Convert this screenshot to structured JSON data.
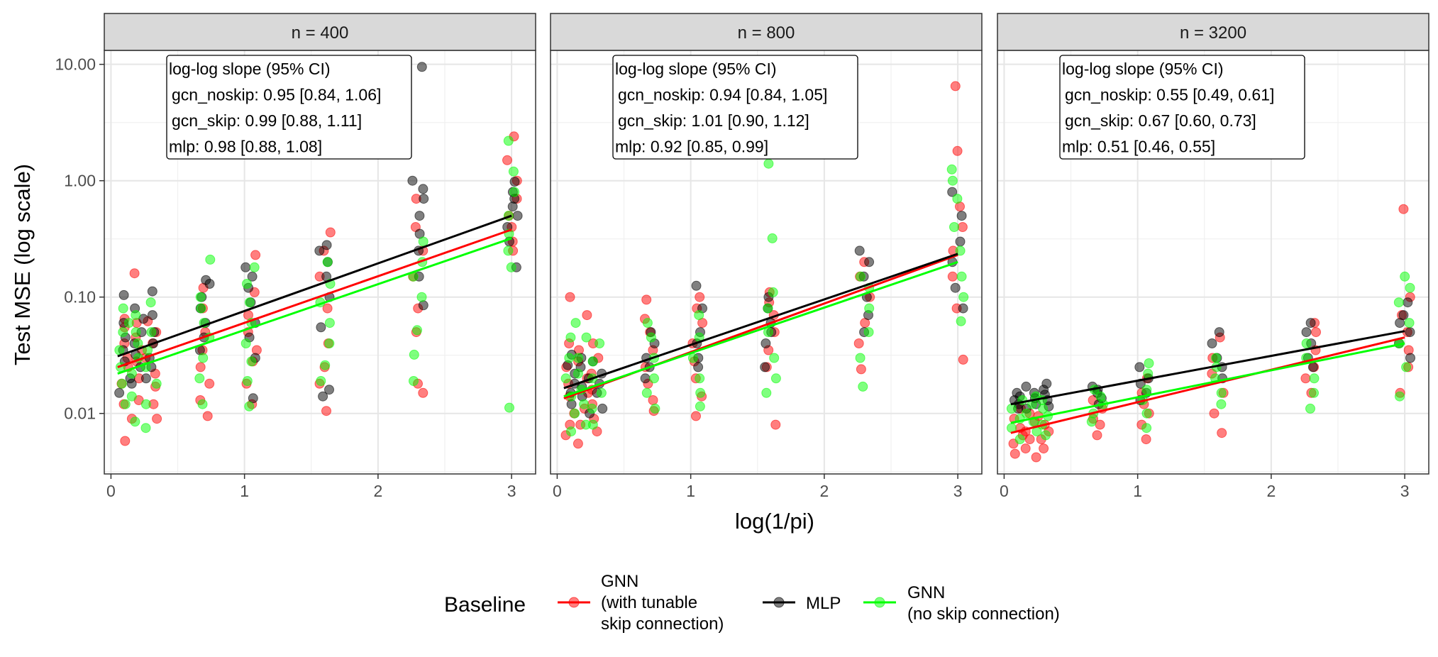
{
  "chart_data": {
    "type": "scatter",
    "ylabel": "Test MSE (log scale)",
    "xlabel": "log(1/pi)",
    "xlim": [
      -0.05,
      3.18
    ],
    "ylim_log10": [
      -2.52,
      1.12
    ],
    "x_ticks": [
      0,
      1,
      2,
      3
    ],
    "x_tick_labels": [
      "0",
      "1",
      "2",
      "3"
    ],
    "y_ticks": [
      0.01,
      0.1,
      1,
      10
    ],
    "y_tick_labels": [
      "0.01",
      "0.10",
      "1.00",
      "10.00"
    ],
    "x_levels": [
      0.1,
      0.2,
      0.3,
      0.7,
      1.05,
      1.6,
      2.3,
      3.0
    ],
    "legend": {
      "title": "Baseline",
      "position": "bottom",
      "entries": [
        {
          "key": "gcn_skip",
          "label_lines": [
            "GNN",
            "(with tunable",
            "skip connection)"
          ]
        },
        {
          "key": "mlp",
          "label_lines": [
            "MLP"
          ]
        },
        {
          "key": "gcn_noskip",
          "label_lines": [
            "GNN",
            "(no skip connection)"
          ]
        }
      ]
    },
    "series_colors": {
      "gcn_skip": "#ff0000",
      "mlp": "#000000",
      "gcn_noskip": "#00ff00"
    },
    "panels": [
      {
        "strip": "n = 400",
        "annotation": [
          "log-log slope (95% CI)",
          "gcn_noskip: 0.95 [0.84, 1.06]",
          "gcn_skip: 0.99 [0.88, 1.11]",
          "mlp: 0.98 [0.88, 1.08]"
        ],
        "fit_lines": {
          "gcn_skip": [
            [
              0.05,
              0.025
            ],
            [
              3.0,
              0.38
            ]
          ],
          "mlp": [
            [
              0.05,
              0.031
            ],
            [
              3.0,
              0.5
            ]
          ],
          "gcn_noskip": [
            [
              0.05,
              0.022
            ],
            [
              3.0,
              0.32
            ]
          ]
        },
        "points": {
          "gcn_skip": {
            "0.1": [
              0.0058,
              0.012,
              0.018,
              0.025,
              0.03,
              0.04,
              0.055,
              0.065
            ],
            "0.2": [
              0.009,
              0.013,
              0.02,
              0.028,
              0.035,
              0.045,
              0.06,
              0.16
            ],
            "0.3": [
              0.009,
              0.012,
              0.017,
              0.022,
              0.03,
              0.04,
              0.05,
              0.062
            ],
            "0.7": [
              0.0095,
              0.013,
              0.018,
              0.025,
              0.035,
              0.05,
              0.08,
              0.12
            ],
            "1.05": [
              0.012,
              0.018,
              0.028,
              0.035,
              0.05,
              0.07,
              0.11,
              0.23
            ],
            "1.6": [
              0.0105,
              0.018,
              0.025,
              0.04,
              0.08,
              0.15,
              0.25,
              0.36
            ],
            "2.3": [
              0.015,
              0.018,
              0.05,
              0.08,
              0.15,
              0.25,
              0.4,
              0.7
            ],
            "3.0": [
              0.25,
              0.3,
              0.4,
              0.5,
              0.7,
              1.0,
              1.5,
              2.4
            ]
          },
          "mlp": {
            "0.1": [
              0.015,
              0.02,
              0.028,
              0.035,
              0.045,
              0.06,
              0.104
            ],
            "0.2": [
              0.018,
              0.025,
              0.032,
              0.04,
              0.05,
              0.065,
              0.08
            ],
            "0.3": [
              0.02,
              0.025,
              0.03,
              0.04,
              0.05,
              0.07,
              0.112
            ],
            "0.7": [
              0.035,
              0.045,
              0.06,
              0.08,
              0.1,
              0.13,
              0.14
            ],
            "1.05": [
              0.0135,
              0.03,
              0.045,
              0.06,
              0.09,
              0.12,
              0.15,
              0.18
            ],
            "1.6": [
              0.014,
              0.016,
              0.055,
              0.1,
              0.15,
              0.2,
              0.25,
              0.28
            ],
            "2.3": [
              0.085,
              0.15,
              0.25,
              0.35,
              0.5,
              0.7,
              0.85,
              1.0,
              9.5
            ],
            "3.0": [
              0.18,
              0.3,
              0.4,
              0.5,
              0.6,
              0.7,
              0.8,
              0.98
            ]
          },
          "gcn_noskip": {
            "0.1": [
              0.012,
              0.018,
              0.025,
              0.035,
              0.05,
              0.06,
              0.08
            ],
            "0.2": [
              0.0085,
              0.014,
              0.022,
              0.03,
              0.04,
              0.05,
              0.07
            ],
            "0.3": [
              0.0075,
              0.012,
              0.018,
              0.025,
              0.035,
              0.05,
              0.09
            ],
            "0.7": [
              0.012,
              0.02,
              0.03,
              0.045,
              0.06,
              0.08,
              0.1,
              0.21
            ],
            "1.05": [
              0.0115,
              0.019,
              0.028,
              0.04,
              0.06,
              0.09,
              0.13,
              0.18
            ],
            "1.6": [
              0.019,
              0.026,
              0.04,
              0.06,
              0.09,
              0.13,
              0.2
            ],
            "2.3": [
              0.019,
              0.032,
              0.052,
              0.1,
              0.15,
              0.2,
              0.3
            ],
            "3.0": [
              0.0112,
              0.18,
              0.25,
              0.35,
              0.5,
              0.8,
              1.2,
              2.2
            ]
          }
        }
      },
      {
        "strip": "n = 800",
        "annotation": [
          "log-log slope (95% CI)",
          "gcn_noskip: 0.94 [0.84, 1.05]",
          "gcn_skip: 1.01 [0.90, 1.12]",
          "mlp: 0.92 [0.85, 0.99]"
        ],
        "fit_lines": {
          "gcn_skip": [
            [
              0.05,
              0.0135
            ],
            [
              3.0,
              0.23
            ]
          ],
          "mlp": [
            [
              0.05,
              0.0165
            ],
            [
              3.0,
              0.235
            ]
          ],
          "gcn_noskip": [
            [
              0.05,
              0.014
            ],
            [
              3.0,
              0.2
            ]
          ]
        },
        "points": {
          "gcn_skip": {
            "0.1": [
              0.0065,
              0.008,
              0.01,
              0.014,
              0.018,
              0.025,
              0.04,
              0.1
            ],
            "0.2": [
              0.0055,
              0.008,
              0.011,
              0.015,
              0.02,
              0.028,
              0.035,
              0.07
            ],
            "0.3": [
              0.007,
              0.009,
              0.012,
              0.016,
              0.022,
              0.03,
              0.04
            ],
            "0.7": [
              0.0105,
              0.013,
              0.018,
              0.025,
              0.035,
              0.05,
              0.065,
              0.095
            ],
            "1.05": [
              0.0095,
              0.014,
              0.02,
              0.028,
              0.04,
              0.06,
              0.08,
              0.1
            ],
            "1.6": [
              0.008,
              0.025,
              0.035,
              0.05,
              0.07,
              0.09,
              0.11
            ],
            "2.3": [
              0.024,
              0.04,
              0.06,
              0.1,
              0.15,
              0.2
            ],
            "3.0": [
              0.029,
              0.08,
              0.15,
              0.25,
              0.4,
              0.6,
              1.8,
              6.5
            ]
          },
          "mlp": {
            "0.1": [
              0.012,
              0.015,
              0.018,
              0.022,
              0.026,
              0.032
            ],
            "0.2": [
              0.01,
              0.014,
              0.017,
              0.02,
              0.025,
              0.03
            ],
            "0.3": [
              0.011,
              0.015,
              0.018,
              0.022,
              0.028
            ],
            "0.7": [
              0.02,
              0.025,
              0.03,
              0.04,
              0.05
            ],
            "1.05": [
              0.025,
              0.03,
              0.04,
              0.05,
              0.08,
              0.125
            ],
            "1.6": [
              0.025,
              0.04,
              0.05,
              0.06,
              0.08,
              0.1
            ],
            "2.3": [
              0.05,
              0.07,
              0.1,
              0.15,
              0.2,
              0.25
            ],
            "3.0": [
              0.08,
              0.12,
              0.2,
              0.3,
              0.5,
              0.8
            ]
          },
          "gcn_noskip": {
            "0.1": [
              0.007,
              0.01,
              0.014,
              0.02,
              0.03,
              0.045,
              0.06
            ],
            "0.2": [
              0.008,
              0.012,
              0.016,
              0.022,
              0.03,
              0.045
            ],
            "0.3": [
              0.008,
              0.011,
              0.015,
              0.02,
              0.028,
              0.04
            ],
            "0.7": [
              0.011,
              0.015,
              0.02,
              0.03,
              0.045,
              0.06
            ],
            "1.05": [
              0.0115,
              0.015,
              0.02,
              0.03,
              0.045,
              0.07
            ],
            "1.6": [
              0.015,
              0.02,
              0.03,
              0.05,
              0.08,
              0.11,
              0.32,
              1.4
            ],
            "2.3": [
              0.017,
              0.03,
              0.05,
              0.08,
              0.12,
              0.15
            ],
            "3.0": [
              0.062,
              0.1,
              0.15,
              0.25,
              0.4,
              0.7,
              1.0,
              1.25
            ]
          }
        }
      },
      {
        "strip": "n = 3200",
        "annotation": [
          "log-log slope (95% CI)",
          "gcn_noskip: 0.55 [0.49, 0.61]",
          "gcn_skip: 0.67 [0.60, 0.73]",
          "mlp: 0.51 [0.46, 0.55]"
        ],
        "fit_lines": {
          "gcn_skip": [
            [
              0.05,
              0.0068
            ],
            [
              3.0,
              0.045
            ]
          ],
          "mlp": [
            [
              0.05,
              0.012
            ],
            [
              3.0,
              0.051
            ]
          ],
          "gcn_noskip": [
            [
              0.05,
              0.0083
            ],
            [
              3.0,
              0.04
            ]
          ]
        },
        "points": {
          "gcn_skip": {
            "0.1": [
              0.0045,
              0.0055,
              0.0065,
              0.0075,
              0.009,
              0.011
            ],
            "0.2": [
              0.0042,
              0.005,
              0.006,
              0.007,
              0.0085,
              0.01
            ],
            "0.3": [
              0.005,
              0.006,
              0.007,
              0.008,
              0.0095
            ],
            "0.7": [
              0.0065,
              0.008,
              0.009,
              0.011,
              0.013
            ],
            "1.05": [
              0.006,
              0.008,
              0.01,
              0.012,
              0.015,
              0.02
            ],
            "1.6": [
              0.0068,
              0.01,
              0.015,
              0.022,
              0.03,
              0.045
            ],
            "2.3": [
              0.015,
              0.02,
              0.025,
              0.035,
              0.05,
              0.06
            ],
            "3.0": [
              0.015,
              0.025,
              0.035,
              0.05,
              0.07,
              0.1,
              0.57
            ]
          },
          "mlp": {
            "0.1": [
              0.011,
              0.012,
              0.013,
              0.014,
              0.015
            ],
            "0.2": [
              0.011,
              0.012,
              0.0135,
              0.015,
              0.017
            ],
            "0.3": [
              0.0115,
              0.013,
              0.0145,
              0.016,
              0.018
            ],
            "0.7": [
              0.012,
              0.0135,
              0.015,
              0.016,
              0.017
            ],
            "1.05": [
              0.013,
              0.015,
              0.018,
              0.02,
              0.025
            ],
            "1.6": [
              0.02,
              0.025,
              0.03,
              0.04,
              0.05
            ],
            "2.3": [
              0.025,
              0.03,
              0.04,
              0.05,
              0.06
            ],
            "3.0": [
              0.03,
              0.04,
              0.05,
              0.06,
              0.07,
              0.09
            ]
          },
          "gcn_noskip": {
            "0.1": [
              0.006,
              0.0075,
              0.009,
              0.011,
              0.013
            ],
            "0.2": [
              0.007,
              0.0085,
              0.01,
              0.012,
              0.014
            ],
            "0.3": [
              0.0065,
              0.008,
              0.0095,
              0.011,
              0.013
            ],
            "0.7": [
              0.0085,
              0.01,
              0.012,
              0.014,
              0.016
            ],
            "1.05": [
              0.0075,
              0.01,
              0.013,
              0.016,
              0.022,
              0.027
            ],
            "1.6": [
              0.012,
              0.015,
              0.02,
              0.025,
              0.03
            ],
            "2.3": [
              0.011,
              0.015,
              0.02,
              0.03,
              0.04
            ],
            "3.0": [
              0.014,
              0.025,
              0.04,
              0.06,
              0.09,
              0.12,
              0.15
            ]
          }
        }
      }
    ]
  }
}
